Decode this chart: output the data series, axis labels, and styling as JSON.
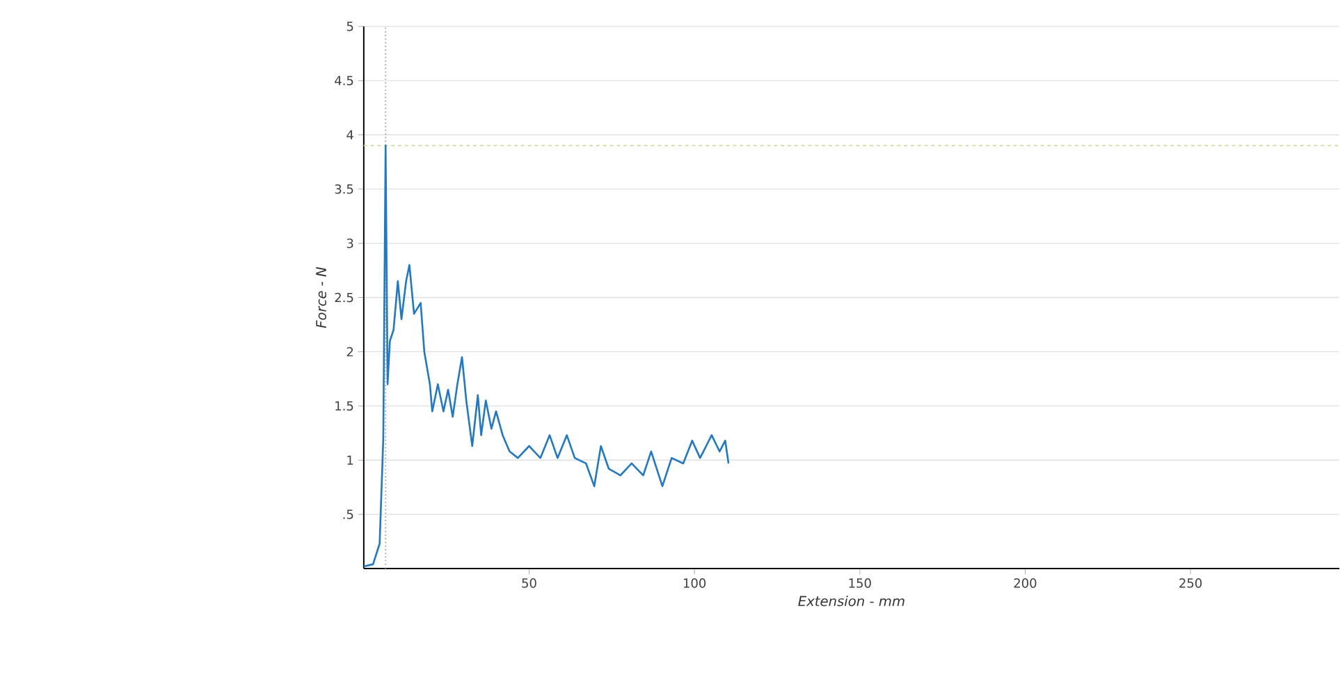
{
  "chart_data": {
    "type": "line",
    "xlabel": "Extension - mm",
    "ylabel": "Force - N",
    "xlim": [
      0,
      295
    ],
    "xticks": [
      50,
      100,
      150,
      200,
      250
    ],
    "ylim": [
      0,
      5
    ],
    "yticks": [
      {
        "value": 0.5,
        "label": ".5"
      },
      1,
      1.5,
      2,
      2.5,
      3,
      3.5,
      4,
      4.5,
      5
    ],
    "grid": "y",
    "marker": "none",
    "line_style": "solid",
    "ref_lines": [
      {
        "axis": "x",
        "value": 6.6,
        "color": "#b0b0b0",
        "line_style": "dotted"
      },
      {
        "axis": "y",
        "value": 3.9,
        "color": "#d8dca0",
        "line_style": "dashed"
      }
    ],
    "series": [
      {
        "color": "#1f78c8",
        "x": [
          0,
          2.8,
          4.8,
          5.9,
          6.6,
          7.2,
          7.9,
          9,
          10.3,
          11.4,
          12.8,
          13.8,
          15.2,
          17.2,
          18.3,
          20,
          20.7,
          22.4,
          24.1,
          25.5,
          26.9,
          28.3,
          29.7,
          31,
          32.8,
          34.5,
          35.5,
          36.9,
          38.6,
          40,
          42,
          44.1,
          46.6,
          50,
          53.4,
          56.2,
          58.6,
          61.4,
          63.8,
          67.2,
          69.7,
          71.7,
          74.1,
          77.6,
          81,
          84.5,
          86.9,
          90.3,
          93.1,
          96.6,
          99.3,
          101.7,
          105.2,
          107.6,
          109.3,
          110.3
        ],
        "values": [
          0.02,
          0.04,
          0.23,
          1.2,
          3.9,
          1.7,
          2.1,
          2.2,
          2.65,
          2.3,
          2.65,
          2.8,
          2.35,
          2.45,
          2.0,
          1.7,
          1.45,
          1.7,
          1.45,
          1.65,
          1.4,
          1.7,
          1.95,
          1.55,
          1.13,
          1.6,
          1.23,
          1.55,
          1.29,
          1.45,
          1.23,
          1.08,
          1.02,
          1.13,
          1.02,
          1.23,
          1.02,
          1.23,
          1.02,
          0.97,
          0.76,
          1.13,
          0.92,
          0.86,
          0.97,
          0.86,
          1.08,
          0.76,
          1.02,
          0.97,
          1.18,
          1.02,
          1.23,
          1.08,
          1.18,
          0.97
        ]
      }
    ]
  }
}
